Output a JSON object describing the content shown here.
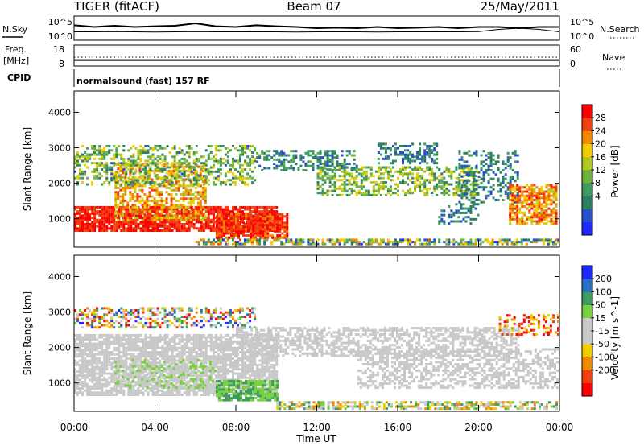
{
  "header": {
    "radar": "TIGER (fitACF)",
    "beam": "Beam 07",
    "date": "25/May/2011"
  },
  "chart_data": [
    {
      "type": "line",
      "panel": "noise",
      "left_label": "N.Sky",
      "right_label": "N.Search",
      "left_ticks": [
        "10^5",
        "10^0"
      ],
      "right_ticks": [
        "10^5",
        "10^0"
      ],
      "x": [
        0,
        1,
        2,
        3,
        4,
        5,
        6,
        7,
        8,
        9,
        10,
        11,
        12,
        13,
        14,
        15,
        16,
        17,
        18,
        19,
        20,
        21,
        22,
        23,
        24
      ],
      "series": [
        {
          "values": [
            0.62,
            0.55,
            0.6,
            0.55,
            0.58,
            0.6,
            0.7,
            0.58,
            0.55,
            0.62,
            0.58,
            0.55,
            0.5,
            0.52,
            0.5,
            0.55,
            0.5,
            0.52,
            0.55,
            0.5,
            0.55,
            0.55,
            0.5,
            0.55,
            0.55
          ]
        },
        {
          "values": [
            0.35,
            0.35,
            0.36,
            0.35,
            0.34,
            0.35,
            0.36,
            0.35,
            0.35,
            0.35,
            0.35,
            0.34,
            0.35,
            0.35,
            0.35,
            0.34,
            0.35,
            0.35,
            0.35,
            0.35,
            0.36,
            0.45,
            0.5,
            0.45,
            0.35
          ]
        }
      ]
    },
    {
      "type": "line",
      "panel": "frequency",
      "left_label": "Freq.",
      "left_unit": "[MHz]",
      "right_label": "Nave",
      "left_ticks": [
        18,
        8
      ],
      "right_ticks": [
        60,
        0
      ],
      "freq_mhz": 10.0,
      "nave": 30
    },
    {
      "type": "table",
      "panel": "cpid",
      "label": "CPID",
      "program": "normalsound (fast) 157 RF"
    },
    {
      "type": "heatmap",
      "panel": "power",
      "ylabel": "Slant Range [km]",
      "yticks": [
        1000,
        2000,
        3000,
        4000
      ],
      "ylim": [
        200,
        4600
      ],
      "xlim": [
        0,
        24
      ],
      "colorbar": {
        "label": "Power [dB]",
        "ticks": [
          4,
          8,
          12,
          16,
          20,
          24,
          28
        ],
        "range": [
          0,
          32
        ]
      },
      "palette": [
        "#1e28ff",
        "#2a50c8",
        "#2a8060",
        "#3e9a60",
        "#6eb03c",
        "#b0c820",
        "#f0cc00",
        "#f08800",
        "#f04010",
        "#ff0000"
      ],
      "blobs": [
        {
          "t": [
            0,
            10
          ],
          "r": [
            700,
            1400
          ],
          "v": [
            26,
            32
          ],
          "d": 0.85
        },
        {
          "t": [
            2,
            6.5
          ],
          "r": [
            1000,
            2600
          ],
          "v": [
            16,
            28
          ],
          "d": 0.55
        },
        {
          "t": [
            0,
            9
          ],
          "r": [
            2000,
            3100
          ],
          "v": [
            6,
            22
          ],
          "d": 0.4
        },
        {
          "t": [
            7,
            10.5
          ],
          "r": [
            500,
            1200
          ],
          "v": [
            24,
            32
          ],
          "d": 0.8
        },
        {
          "t": [
            9,
            14
          ],
          "r": [
            2400,
            3000
          ],
          "v": [
            4,
            14
          ],
          "d": 0.45
        },
        {
          "t": [
            12,
            20
          ],
          "r": [
            1700,
            2500
          ],
          "v": [
            8,
            22
          ],
          "d": 0.5
        },
        {
          "t": [
            15,
            18
          ],
          "r": [
            2600,
            3200
          ],
          "v": [
            4,
            12
          ],
          "d": 0.45
        },
        {
          "t": [
            18,
            20
          ],
          "r": [
            900,
            1500
          ],
          "v": [
            4,
            12
          ],
          "d": 0.35
        },
        {
          "t": [
            19,
            22
          ],
          "r": [
            1500,
            3000
          ],
          "v": [
            4,
            12
          ],
          "d": 0.35
        },
        {
          "t": [
            21.5,
            24
          ],
          "r": [
            900,
            2000
          ],
          "v": [
            18,
            30
          ],
          "d": 0.7
        },
        {
          "t": [
            6,
            24
          ],
          "r": [
            200,
            500
          ],
          "v": [
            2,
            26
          ],
          "d": 0.6
        }
      ]
    },
    {
      "type": "heatmap",
      "panel": "velocity",
      "ylabel": "Slant Range [km]",
      "yticks": [
        1000,
        2000,
        3000,
        4000
      ],
      "ylim": [
        200,
        4600
      ],
      "xlim": [
        0,
        24
      ],
      "colorbar": {
        "label": "Velocity [m s^-1]",
        "ticks": [
          200,
          100,
          50,
          15,
          -15,
          -50,
          -100,
          -200
        ]
      },
      "palette": [
        "#ff0000",
        "#f04010",
        "#f08800",
        "#f0cc00",
        "#c8c8c8",
        "#c8c8c8",
        "#78d040",
        "#3e9a60",
        "#2a70c0",
        "#1e28ff"
      ],
      "blobs": [
        {
          "t": [
            0,
            10
          ],
          "r": [
            700,
            2400
          ],
          "v": [
            4,
            5
          ],
          "d": 0.8
        },
        {
          "t": [
            2,
            7
          ],
          "r": [
            900,
            1700
          ],
          "v": [
            5,
            6
          ],
          "d": 0.35
        },
        {
          "t": [
            7,
            10
          ],
          "r": [
            550,
            1100
          ],
          "v": [
            6,
            7
          ],
          "d": 0.75
        },
        {
          "t": [
            0,
            9
          ],
          "r": [
            2600,
            3200
          ],
          "v": [
            0,
            9
          ],
          "d": 0.45
        },
        {
          "t": [
            8,
            22
          ],
          "r": [
            1800,
            2600
          ],
          "v": [
            4,
            5
          ],
          "d": 0.55
        },
        {
          "t": [
            14,
            24
          ],
          "r": [
            900,
            2000
          ],
          "v": [
            4,
            5
          ],
          "d": 0.5
        },
        {
          "t": [
            21,
            24
          ],
          "r": [
            2400,
            3000
          ],
          "v": [
            0,
            3
          ],
          "d": 0.4
        },
        {
          "t": [
            10,
            24
          ],
          "r": [
            250,
            550
          ],
          "v": [
            2,
            7
          ],
          "d": 0.6
        }
      ]
    }
  ],
  "xaxis": {
    "label": "Time UT",
    "ticks": [
      "00:00",
      "04:00",
      "08:00",
      "12:00",
      "16:00",
      "20:00",
      "00:00"
    ]
  }
}
